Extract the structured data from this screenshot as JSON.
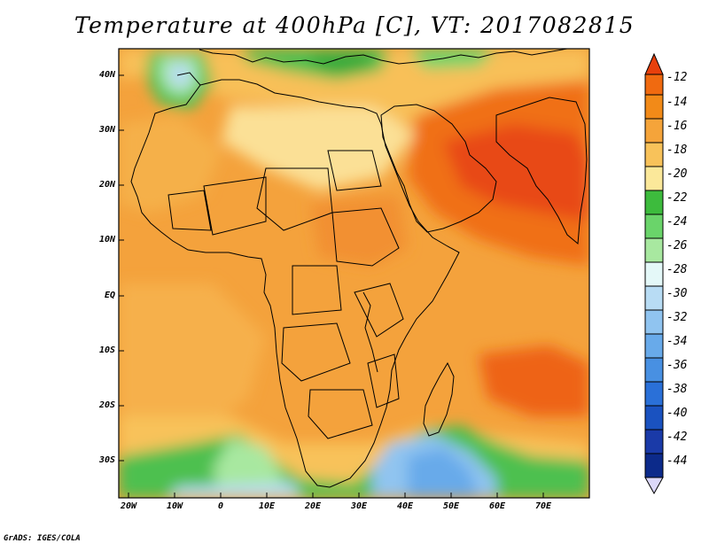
{
  "title": "Temperature at 400hPa [C], VT: 2017082815",
  "lat_labels": [
    "40N",
    "30N",
    "20N",
    "10N",
    "EQ",
    "10S",
    "20S",
    "30S"
  ],
  "lon_labels": [
    "20W",
    "10W",
    "0",
    "10E",
    "20E",
    "30E",
    "40E",
    "50E",
    "60E",
    "70E"
  ],
  "colorbar": {
    "labels": [
      "-12",
      "-14",
      "-16",
      "-18",
      "-20",
      "-22",
      "-24",
      "-26",
      "-28",
      "-30",
      "-32",
      "-34",
      "-36",
      "-38",
      "-40",
      "-42",
      "-44"
    ],
    "colors": [
      "#e8400c",
      "#f06a10",
      "#f28a18",
      "#f5a43a",
      "#f8c25a",
      "#fbe89a",
      "#3dbb3d",
      "#6ad46a",
      "#a8e8a0",
      "#e4f8f8",
      "#b8dcf4",
      "#90c4f0",
      "#68aaea",
      "#4890e2",
      "#2a70d8",
      "#1a52c0",
      "#0c2a8a",
      "#dcd8f8"
    ]
  },
  "credit": "GrADS: IGES/COLA",
  "colors": {
    "ocean_warm": "#f2a040",
    "land_outline": "#000000",
    "frame": "#000000"
  }
}
